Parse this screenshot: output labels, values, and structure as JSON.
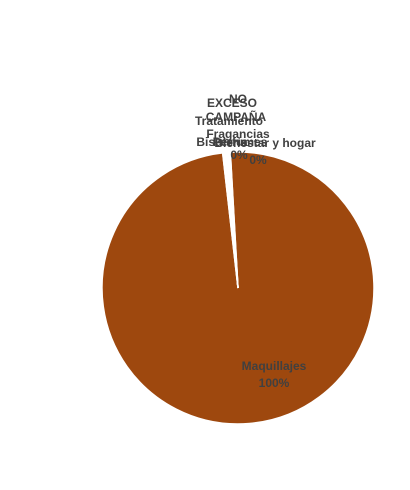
{
  "chart_data": {
    "type": "pie",
    "slices": [
      {
        "name": "Maquillajes",
        "value": 99.2,
        "pct_label": "100%",
        "color": "#9e480e"
      },
      {
        "name": "Perfumes",
        "value": 0.2,
        "pct_label": "0%",
        "color": "#ffffff"
      },
      {
        "name": "Bisutería",
        "value": 0.1,
        "pct_label": "0%",
        "color": "#ffffff"
      },
      {
        "name": "Tratamiento",
        "value": 0.1,
        "pct_label": "0%",
        "color": "#ffffff"
      },
      {
        "name": "Fragancias",
        "value": 0.1,
        "pct_label": "0%",
        "color": "#ffffff"
      },
      {
        "name": "CAMPAÑA",
        "value": 0.1,
        "pct_label": "0%",
        "color": "#ffffff"
      },
      {
        "name": "NO",
        "value": 0.1,
        "pct_label": "0%",
        "color": "#ffffff"
      },
      {
        "name": "EXCESO",
        "value": 0.1,
        "pct_label": "0%",
        "color": "#ffffff"
      },
      {
        "name": "Bienestar y hogar",
        "value": 0.1,
        "pct_label": "0%",
        "color": "#ffffff"
      }
    ],
    "label_color": "#404040",
    "legend": "none"
  }
}
